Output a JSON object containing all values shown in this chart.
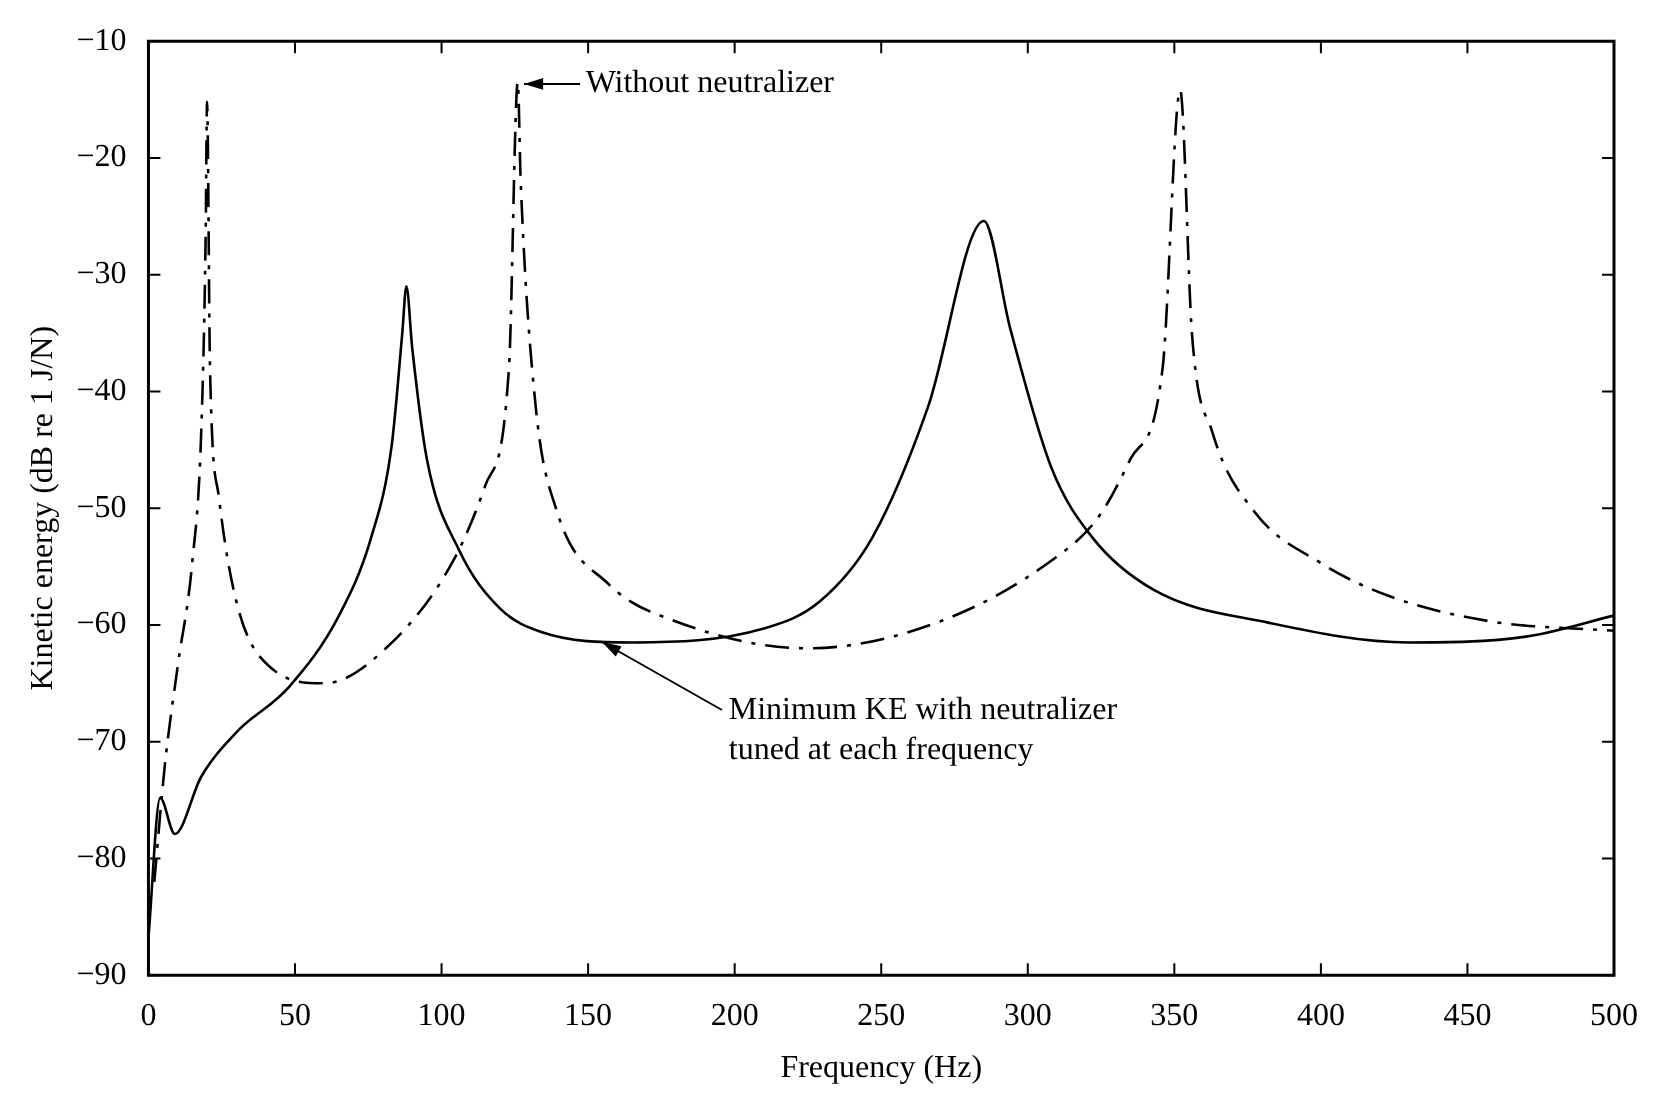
{
  "chart_data": {
    "type": "line",
    "xlabel": "Frequency (Hz)",
    "ylabel": "Kinetic energy (dB re 1 J/N)",
    "xlim": [
      0,
      500
    ],
    "ylim": [
      -90,
      -10
    ],
    "xticks": [
      0,
      50,
      100,
      150,
      200,
      250,
      300,
      350,
      400,
      450,
      500
    ],
    "yticks": [
      {
        "value": -90,
        "label": "−90"
      },
      {
        "value": -80,
        "label": "−80"
      },
      {
        "value": -70,
        "label": "−70"
      },
      {
        "value": -60,
        "label": "−60"
      },
      {
        "value": -50,
        "label": "−50"
      },
      {
        "value": -40,
        "label": "−40"
      },
      {
        "value": -30,
        "label": "−30"
      },
      {
        "value": -20,
        "label": "−20"
      },
      {
        "value": -10,
        "label": "−10"
      }
    ],
    "grid": false,
    "legend": false,
    "marker": "none",
    "series": [
      {
        "color": "#000000",
        "line_style": "dashed",
        "x": [
          2,
          5.6,
          10,
          15,
          18,
          19.5,
          20,
          21,
          24,
          30,
          41,
          60,
          81,
          104,
          115,
          123,
          126,
          127,
          132,
          139,
          157,
          180,
          225,
          270,
          308,
          324,
          335,
          346,
          352,
          356,
          363,
          377,
          400,
          423,
          458,
          500
        ],
        "values": [
          -82,
          -72,
          -63.5,
          -54.5,
          -43.5,
          -27,
          -15.2,
          -38,
          -49,
          -58,
          -63.5,
          -65,
          -62,
          -54.5,
          -48,
          -38,
          -13.5,
          -22,
          -41,
          -50,
          -56.5,
          -59.7,
          -62,
          -59.7,
          -54.5,
          -50.8,
          -45.8,
          -38,
          -14.2,
          -35,
          -43.5,
          -50.2,
          -54.7,
          -57.5,
          -59.7,
          -60.5
        ]
      },
      {
        "color": "#000000",
        "line_style": "solid",
        "x": [
          0,
          4,
          9,
          18,
          30,
          48,
          65,
          76,
          83,
          86.6,
          88,
          90,
          95,
          106,
          120,
          134,
          165,
          210,
          229,
          247,
          266,
          285,
          294,
          308,
          322,
          343,
          382,
          430,
          470,
          500
        ],
        "values": [
          -86.8,
          -74.8,
          -77.9,
          -73,
          -69.2,
          -65.3,
          -59.2,
          -52.5,
          -44.6,
          -35,
          -31,
          -36.3,
          -45.8,
          -53.6,
          -58.6,
          -60.6,
          -61.5,
          -60.3,
          -58,
          -52.5,
          -41.3,
          -25.4,
          -34.6,
          -46.5,
          -52.5,
          -57,
          -59.8,
          -61.5,
          -61,
          -59.2
        ]
      }
    ],
    "annotations": [
      {
        "text": "Without neutralizer",
        "x": 128,
        "y": -13.6
      },
      {
        "text": "Minimum KE with neutralizer\ntuned at each frequency",
        "x": 155,
        "y": -61.5
      }
    ]
  }
}
